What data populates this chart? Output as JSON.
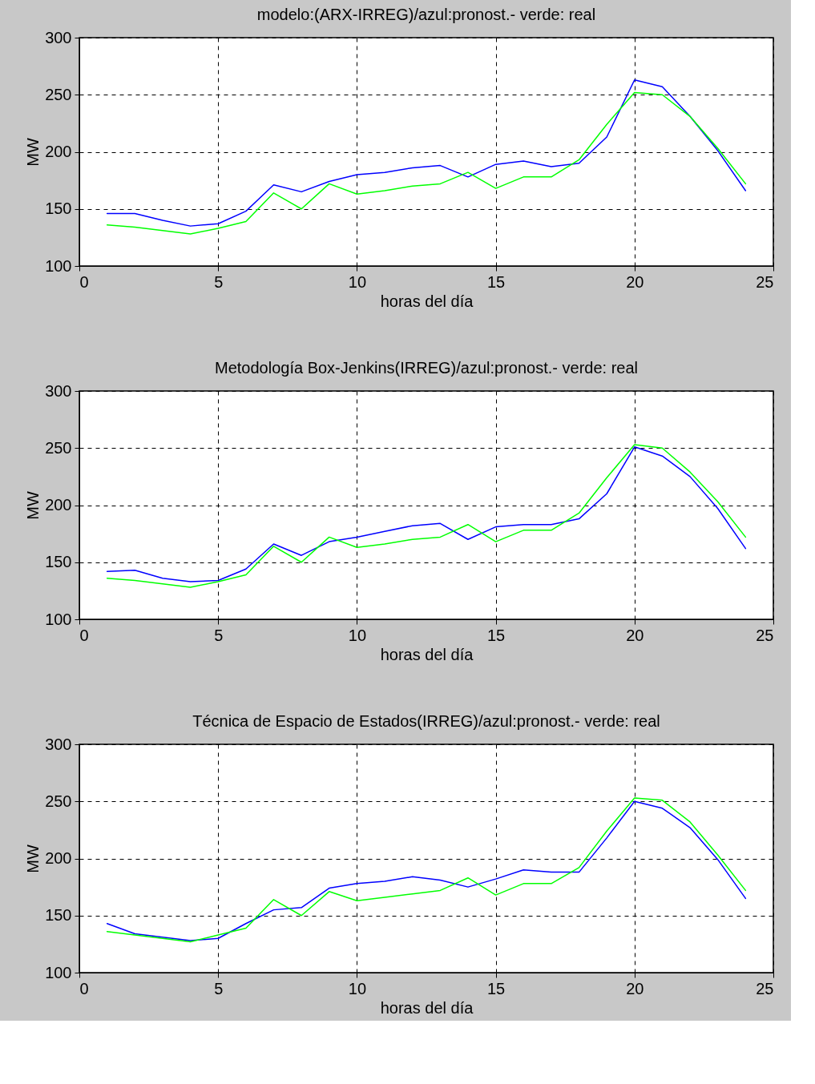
{
  "chart_data": [
    {
      "type": "line",
      "title": "modelo:(ARX-IRREG)/azul:pronost.- verde: real",
      "xlabel": "horas del día",
      "ylabel": "MW",
      "x": [
        1,
        2,
        3,
        4,
        5,
        6,
        7,
        8,
        9,
        10,
        11,
        12,
        13,
        14,
        15,
        16,
        17,
        18,
        19,
        20,
        21,
        22,
        23,
        24
      ],
      "xlim": [
        0,
        25
      ],
      "xticks": [
        0,
        5,
        10,
        15,
        20,
        25
      ],
      "ylim": [
        100,
        300
      ],
      "yticks": [
        100,
        150,
        200,
        250,
        300
      ],
      "grid": true,
      "series": [
        {
          "color": "#0000ff",
          "values": [
            146,
            146,
            140,
            135,
            137,
            148,
            171,
            165,
            174,
            180,
            182,
            186,
            188,
            178,
            189,
            192,
            187,
            190,
            213,
            263,
            257,
            231,
            201,
            166
          ]
        },
        {
          "color": "#00ff00",
          "values": [
            136,
            134,
            131,
            128,
            133,
            139,
            164,
            150,
            172,
            163,
            166,
            170,
            172,
            182,
            168,
            178,
            178,
            193,
            224,
            252,
            250,
            231,
            203,
            172
          ]
        }
      ]
    },
    {
      "type": "line",
      "title": "Metodología Box-Jenkins(IRREG)/azul:pronost.- verde: real",
      "xlabel": "horas del día",
      "ylabel": "MW",
      "x": [
        1,
        2,
        3,
        4,
        5,
        6,
        7,
        8,
        9,
        10,
        11,
        12,
        13,
        14,
        15,
        16,
        17,
        18,
        19,
        20,
        21,
        22,
        23,
        24
      ],
      "xlim": [
        0,
        25
      ],
      "xticks": [
        0,
        5,
        10,
        15,
        20,
        25
      ],
      "ylim": [
        100,
        300
      ],
      "yticks": [
        100,
        150,
        200,
        250,
        300
      ],
      "grid": true,
      "series": [
        {
          "color": "#0000ff",
          "values": [
            142,
            143,
            136,
            133,
            134,
            144,
            166,
            156,
            168,
            172,
            177,
            182,
            184,
            170,
            181,
            183,
            183,
            188,
            210,
            251,
            243,
            225,
            197,
            162
          ]
        },
        {
          "color": "#00ff00",
          "values": [
            136,
            134,
            131,
            128,
            133,
            139,
            164,
            150,
            172,
            163,
            166,
            170,
            172,
            183,
            168,
            178,
            178,
            193,
            224,
            253,
            250,
            229,
            203,
            172
          ]
        }
      ]
    },
    {
      "type": "line",
      "title": "Técnica de Espacio de Estados(IRREG)/azul:pronost.- verde: real",
      "xlabel": "horas del día",
      "ylabel": "MW",
      "x": [
        1,
        2,
        3,
        4,
        5,
        6,
        7,
        8,
        9,
        10,
        11,
        12,
        13,
        14,
        15,
        16,
        17,
        18,
        19,
        20,
        21,
        22,
        23,
        24
      ],
      "xlim": [
        0,
        25
      ],
      "xticks": [
        0,
        5,
        10,
        15,
        20,
        25
      ],
      "ylim": [
        100,
        300
      ],
      "yticks": [
        100,
        150,
        200,
        250,
        300
      ],
      "grid": true,
      "series": [
        {
          "color": "#0000ff",
          "values": [
            143,
            134,
            131,
            128,
            130,
            143,
            155,
            157,
            174,
            178,
            180,
            184,
            181,
            175,
            182,
            190,
            188,
            188,
            218,
            250,
            244,
            227,
            199,
            165
          ]
        },
        {
          "color": "#00ff00",
          "values": [
            136,
            133,
            130,
            127,
            133,
            139,
            164,
            150,
            171,
            163,
            166,
            169,
            172,
            183,
            168,
            178,
            178,
            192,
            224,
            253,
            251,
            232,
            203,
            172
          ]
        }
      ]
    }
  ]
}
